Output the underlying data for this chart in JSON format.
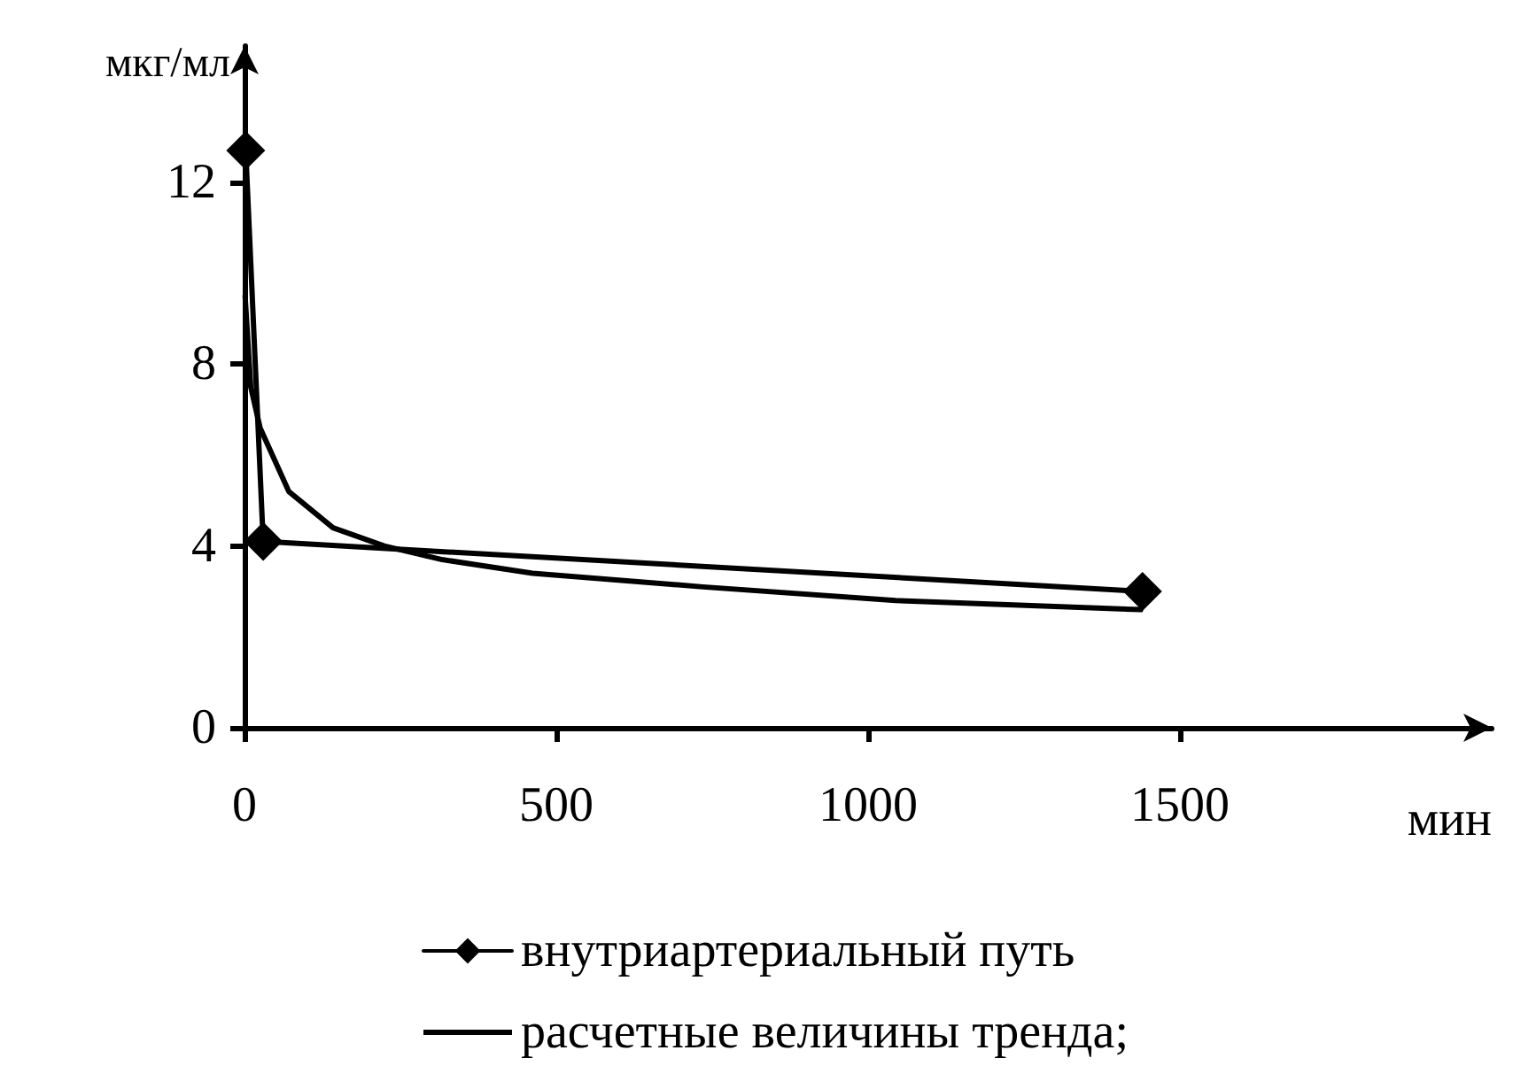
{
  "chart_data": {
    "type": "line",
    "xlabel": "мин",
    "ylabel": "мкг/мл",
    "xlim": [
      0,
      2000
    ],
    "xticks": [
      0,
      500,
      1000,
      1500
    ],
    "ylim": [
      0,
      15
    ],
    "yticks": [
      0,
      4,
      8,
      12
    ],
    "grid": false,
    "legend": "bottom",
    "line_style": "solid",
    "series": [
      {
        "name": "внутриартериальный путь",
        "color": "#000000",
        "marker": "diamond",
        "x": [
          2,
          30,
          1440
        ],
        "values": [
          12.7,
          4.1,
          3.0
        ]
      },
      {
        "name": "расчетные величины тренда;",
        "color": "#000000",
        "marker": "none",
        "x": [
          1,
          10,
          25,
          71,
          142,
          224,
          317,
          462,
          735,
          1044,
          1437
        ],
        "values": [
          9.5,
          7.5,
          6.6,
          5.2,
          4.4,
          4.0,
          3.7,
          3.4,
          3.1,
          2.8,
          2.6
        ]
      }
    ]
  }
}
